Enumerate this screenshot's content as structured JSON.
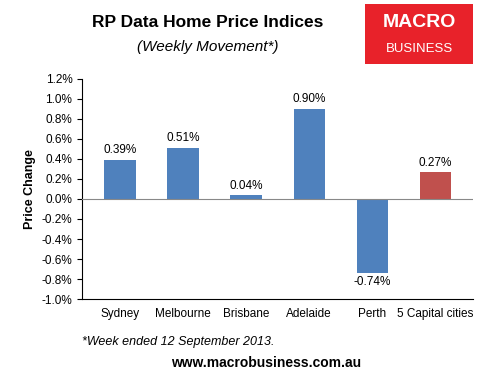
{
  "chart_data": {
    "type": "bar",
    "title": "RP Data Home Price Indices",
    "subtitle": "(Weekly Movement*)",
    "y_label": "Price Change",
    "logo": [
      "MACRO",
      "BUSINESS"
    ],
    "note": "*Week ended 12 September 2013.",
    "source": "www.macrobusiness.com.au",
    "categories": [
      "Sydney",
      "Melbourne",
      "Brisbane",
      "Adelaide",
      "Perth",
      "5 Capital cities"
    ],
    "values": [
      0.39,
      0.51,
      0.04,
      0.9,
      -0.74,
      0.27
    ],
    "value_labels": [
      "0.39%",
      "0.51%",
      "0.04%",
      "0.90%",
      "-0.74%",
      "0.27%"
    ],
    "colors": [
      "#4f81bd",
      "#4f81bd",
      "#4f81bd",
      "#4f81bd",
      "#4f81bd",
      "#c0504d"
    ],
    "data_labels": true,
    "grid": false,
    "ylim": [
      -1.0,
      1.2
    ],
    "yticks": [
      {
        "value": -1.0,
        "label": "-1.0%"
      },
      {
        "value": -0.8,
        "label": "-0.8%"
      },
      {
        "value": -0.6,
        "label": "-0.6%"
      },
      {
        "value": -0.4,
        "label": "-0.4%"
      },
      {
        "value": -0.2,
        "label": "-0.2%"
      },
      {
        "value": 0.0,
        "label": "0.0%"
      },
      {
        "value": 0.2,
        "label": "0.2%"
      },
      {
        "value": 0.4,
        "label": "0.4%"
      },
      {
        "value": 0.6,
        "label": "0.6%"
      },
      {
        "value": 0.8,
        "label": "0.8%"
      },
      {
        "value": 1.0,
        "label": "1.0%"
      },
      {
        "value": 1.2,
        "label": "1.2%"
      }
    ]
  }
}
